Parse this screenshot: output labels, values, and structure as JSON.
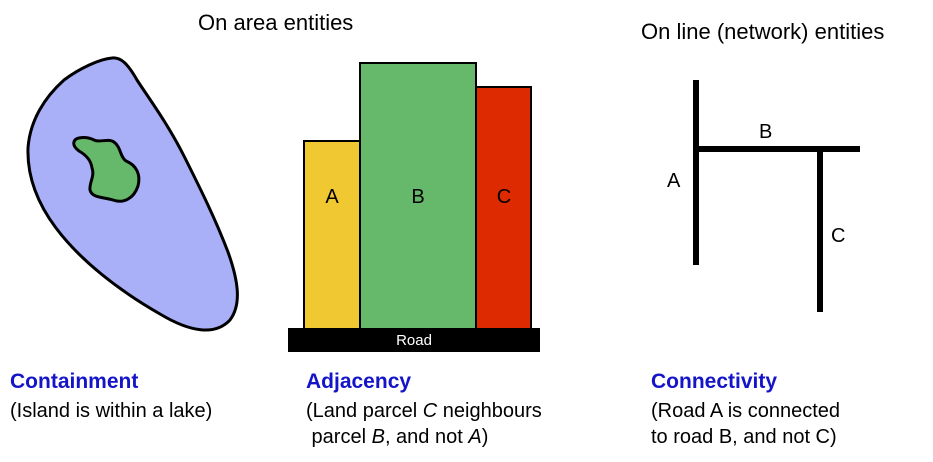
{
  "headings": {
    "area": "On area entities",
    "line": "On line (network) entities"
  },
  "containment": {
    "title": "Containment",
    "desc": "(Island is within a lake)",
    "colors": {
      "lake": "#aab0f8",
      "island": "#66b86a"
    }
  },
  "adjacency": {
    "title": "Adjacency",
    "desc_line1_pre": "(Land parcel ",
    "desc_line1_em": "C",
    "desc_line1_post": " neighbours",
    "desc_line2_pre": " parcel ",
    "desc_line2_em1": "B",
    "desc_line2_mid": ", and not ",
    "desc_line2_em2": "A",
    "desc_line2_post": ")",
    "parcels": [
      {
        "label": "A",
        "color": "#f0c832"
      },
      {
        "label": "B",
        "color": "#66b86a"
      },
      {
        "label": "C",
        "color": "#dd2a00"
      }
    ],
    "road_label": "Road"
  },
  "connectivity": {
    "title": "Connectivity",
    "desc_line1": "(Road A is connected",
    "desc_line2": "to road B, and not C)",
    "roads": {
      "a": "A",
      "b": "B",
      "c": "C"
    }
  }
}
